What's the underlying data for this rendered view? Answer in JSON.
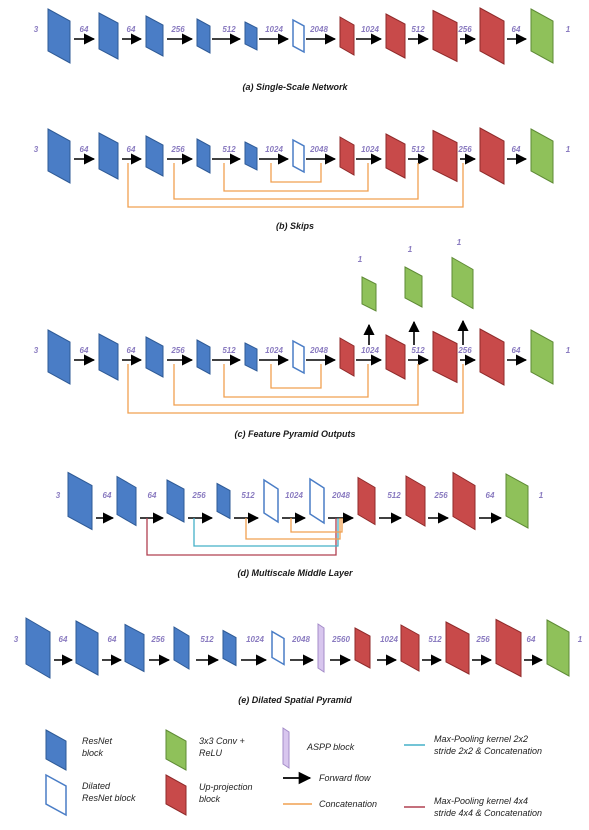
{
  "colors": {
    "resnet": "#4a7dc6",
    "resnet_edge": "#2e5a96",
    "dilated_fill": "#ffffff",
    "dilated_edge": "#4a7dc6",
    "upproj": "#c84a4a",
    "upproj_edge": "#8f2a2a",
    "conv": "#8fc15a",
    "conv_edge": "#5e8a35",
    "aspp": "#d8c6ee",
    "aspp_edge": "#a48cc8",
    "concat": "#f0a050",
    "maxpool2": "#45b0c8",
    "maxpool4": "#b04050",
    "channel_text": "#8a7bc0"
  },
  "panels": {
    "a": {
      "caption": "(a) Single-Scale Network",
      "channels": [
        "3",
        "64",
        "64",
        "256",
        "512",
        "1024",
        "2048",
        "1024",
        "512",
        "256",
        "64",
        "1"
      ]
    },
    "b": {
      "caption": "(b) Skips",
      "channels": [
        "3",
        "64",
        "64",
        "256",
        "512",
        "1024",
        "2048",
        "1024",
        "512",
        "256",
        "64",
        "1"
      ]
    },
    "c": {
      "caption": "(c) Feature Pyramid Outputs",
      "channels": [
        "3",
        "64",
        "64",
        "256",
        "512",
        "1024",
        "2048",
        "1024",
        "512",
        "256",
        "64",
        "1"
      ],
      "pyramid_channels": [
        "1",
        "1",
        "1"
      ]
    },
    "d": {
      "caption": "(d) Multiscale Middle Layer",
      "channels": [
        "3",
        "64",
        "64",
        "256",
        "512",
        "1024",
        "2048",
        "512",
        "256",
        "64",
        "1"
      ]
    },
    "e": {
      "caption": "(e) Dilated Spatial Pyramid",
      "channels": [
        "3",
        "64",
        "64",
        "256",
        "512",
        "1024",
        "2048",
        "2560",
        "1024",
        "512",
        "256",
        "64",
        "1"
      ]
    }
  },
  "legend": {
    "resnet_line1": "ResNet",
    "resnet_line2": "block",
    "dilated_line1": "Dilated",
    "dilated_line2": "ResNet block",
    "conv_line1": "3x3 Conv +",
    "conv_line2": "ReLU",
    "upproj_line1": "Up-projection",
    "upproj_line2": "block",
    "aspp": "ASPP block",
    "forward": "Forward flow",
    "concat": "Concatenation",
    "maxpool2_line1": "Max-Pooling kernel 2x2",
    "maxpool2_line2": "stride 2x2 & Concatenation",
    "maxpool4_line1": "Max-Pooling kernel 4x4",
    "maxpool4_line2": "stride 4x4 & Concatenation"
  }
}
